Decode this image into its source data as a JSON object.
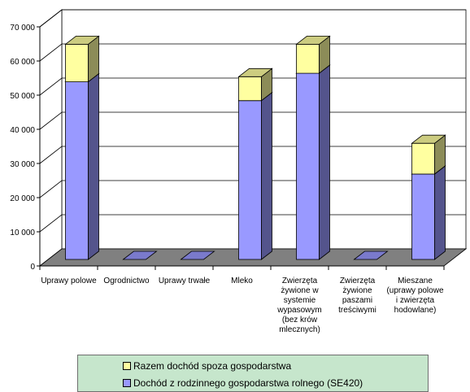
{
  "chart_data": {
    "type": "bar",
    "stacked": true,
    "three_d": true,
    "categories": [
      [
        "Uprawy polowe"
      ],
      [
        "Ogrodnictwo"
      ],
      [
        "Uprawy trwałe"
      ],
      [
        "Mleko"
      ],
      [
        "Zwierzęta",
        "żywione w",
        "systemie",
        "wypasowym",
        "(bez krów",
        "mlecznych)"
      ],
      [
        "Zwierzęta",
        "żywione",
        "paszami",
        "treściwymi"
      ],
      [
        "Mieszane",
        "(uprawy polowe",
        "i zwierzęta",
        "hodowlane)"
      ]
    ],
    "series": [
      {
        "name": "Dochód z rodzinnego gospodarstwa rolnego (SE420)",
        "color": "#9999ff",
        "values": [
          52000,
          0,
          0,
          46500,
          54500,
          0,
          25000
        ]
      },
      {
        "name": "Razem dochód spoza gospodarstwa",
        "color": "#ffffa0",
        "values": [
          11000,
          0,
          0,
          7000,
          8500,
          0,
          9000
        ]
      }
    ],
    "ylim": [
      0,
      70000
    ],
    "yticks": [
      "0",
      "10 000",
      "20 000",
      "30 000",
      "40 000",
      "50 000",
      "60 000",
      "70 000"
    ],
    "grid": true,
    "legend_position": "bottom"
  }
}
